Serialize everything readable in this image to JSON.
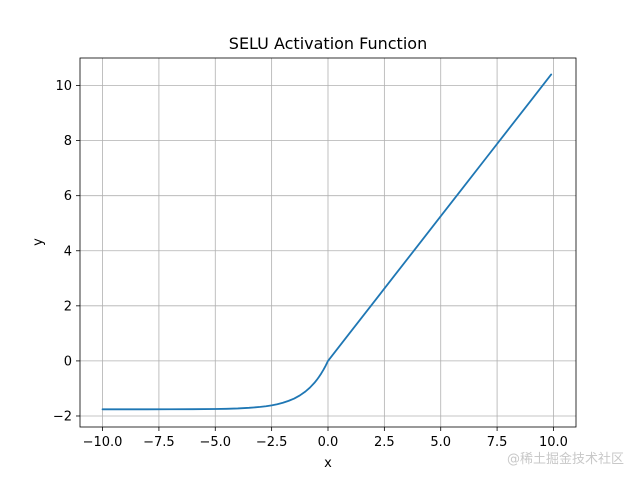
{
  "chart_data": {
    "type": "line",
    "title": "SELU Activation Function",
    "xlabel": "x",
    "ylabel": "y",
    "xlim": [
      -11.0,
      11.0
    ],
    "ylim": [
      -2.4,
      11.0
    ],
    "xticks": [
      -10.0,
      -7.5,
      -5.0,
      -2.5,
      0.0,
      2.5,
      5.0,
      7.5,
      10.0
    ],
    "xtick_labels": [
      "−10.0",
      "−7.5",
      "−5.0",
      "−2.5",
      "0.0",
      "2.5",
      "5.0",
      "7.5",
      "10.0"
    ],
    "yticks": [
      -2,
      0,
      2,
      4,
      6,
      8,
      10
    ],
    "ytick_labels": [
      "−2",
      "0",
      "2",
      "4",
      "6",
      "8",
      "10"
    ],
    "grid": true,
    "series": [
      {
        "color": "#1f77b4",
        "x": [
          -10.0,
          -9.0,
          -8.0,
          -7.0,
          -6.0,
          -5.0,
          -4.5,
          -4.0,
          -3.5,
          -3.0,
          -2.75,
          -2.5,
          -2.25,
          -2.0,
          -1.75,
          -1.5,
          -1.25,
          -1.0,
          -0.8,
          -0.6,
          -0.5,
          -0.4,
          -0.3,
          -0.2,
          -0.1,
          0.0,
          1.0,
          2.0,
          3.0,
          4.0,
          5.0,
          6.0,
          7.0,
          8.0,
          9.0,
          9.9
        ],
        "y": [
          -1.758,
          -1.758,
          -1.757,
          -1.756,
          -1.754,
          -1.746,
          -1.739,
          -1.726,
          -1.704,
          -1.67,
          -1.645,
          -1.613,
          -1.572,
          -1.52,
          -1.452,
          -1.366,
          -1.254,
          -1.111,
          -0.968,
          -0.794,
          -0.692,
          -0.58,
          -0.456,
          -0.319,
          -0.167,
          0.0,
          1.051,
          2.101,
          3.152,
          4.203,
          5.254,
          6.304,
          7.355,
          8.406,
          9.456,
          10.402
        ]
      }
    ]
  },
  "watermark": "@稀土掘金技术社区"
}
